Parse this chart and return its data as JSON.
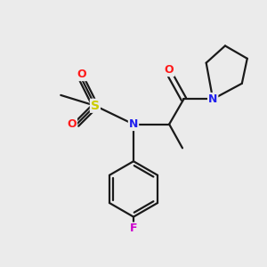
{
  "background_color": "#ebebeb",
  "bond_color": "#1a1a1a",
  "atom_colors": {
    "N": "#2020ee",
    "O": "#ff1a1a",
    "S": "#cccc00",
    "F": "#cc00cc",
    "C": "#1a1a1a"
  },
  "figsize": [
    3.0,
    3.0
  ],
  "dpi": 100,
  "lw": 1.6
}
